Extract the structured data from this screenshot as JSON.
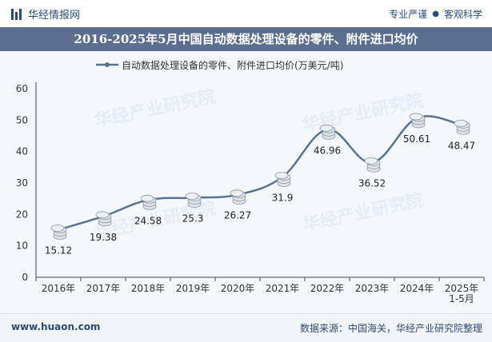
{
  "header": {
    "brand": "华经情报网",
    "tag_left": "专业严谨",
    "tag_right": "客观科学"
  },
  "title": "2016-2025年5月中国自动数据处理设备的零件、附件进口均价",
  "chart_data": {
    "type": "line",
    "title": "2016-2025年5月中国自动数据处理设备的零件、附件进口均价",
    "legend": "自动数据处理设备的零件、附件进口均价(万美元/吨)",
    "categories": [
      "2016年",
      "2017年",
      "2018年",
      "2019年",
      "2020年",
      "2021年",
      "2022年",
      "2023年",
      "2024年",
      "2025年\n1-5月"
    ],
    "values": [
      15.12,
      19.38,
      24.58,
      25.3,
      26.27,
      31.9,
      46.96,
      36.52,
      50.61,
      48.47
    ],
    "value_labels": [
      "15.12",
      "19.38",
      "24.58",
      "25.3",
      "26.27",
      "31.9",
      "46.96",
      "36.52",
      "50.61",
      "48.47"
    ],
    "ylim": [
      0,
      60
    ],
    "yticks": [
      "0",
      "10",
      "20",
      "30",
      "40",
      "50",
      "60"
    ],
    "xlabel": "",
    "ylabel": "",
    "line_color": "#5a7394"
  },
  "footer": {
    "site": "www.huaon.com",
    "source": "数据来源：中国海关，华经产业研究院整理"
  }
}
